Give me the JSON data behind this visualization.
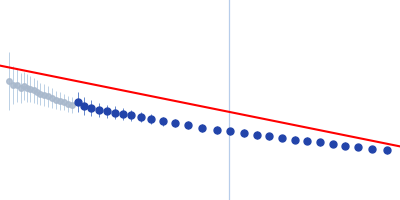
{
  "background_color": "#ffffff",
  "red_line_x": [
    -0.02,
    1.02
  ],
  "red_line_y": [
    0.68,
    0.26
  ],
  "vline_x": 0.572,
  "vline_color": "#b0c8e8",
  "series1": {
    "x": [
      0.022,
      0.032,
      0.042,
      0.052,
      0.06,
      0.068,
      0.076,
      0.084,
      0.092,
      0.1,
      0.11,
      0.12,
      0.13,
      0.14,
      0.15,
      0.16,
      0.17,
      0.18
    ],
    "y": [
      0.595,
      0.575,
      0.575,
      0.56,
      0.57,
      0.56,
      0.555,
      0.548,
      0.538,
      0.53,
      0.525,
      0.518,
      0.51,
      0.5,
      0.495,
      0.49,
      0.482,
      0.475
    ],
    "yerr": [
      0.145,
      0.095,
      0.085,
      0.075,
      0.07,
      0.068,
      0.063,
      0.062,
      0.06,
      0.056,
      0.054,
      0.051,
      0.049,
      0.045,
      0.043,
      0.041,
      0.04,
      0.038
    ],
    "color": "#a8b8cc",
    "ecolor": "#b0c8e0",
    "alpha": 0.85,
    "marker_size": 4,
    "linewidth": 0.7
  },
  "series2": {
    "x": [
      0.195,
      0.21,
      0.228,
      0.248,
      0.268,
      0.288,
      0.308,
      0.328,
      0.352,
      0.378,
      0.408,
      0.438,
      0.47,
      0.505,
      0.542,
      0.575,
      0.61,
      0.642,
      0.672,
      0.705,
      0.738,
      0.768,
      0.8,
      0.832,
      0.862,
      0.895,
      0.93,
      0.968
    ],
    "y": [
      0.49,
      0.47,
      0.458,
      0.45,
      0.443,
      0.437,
      0.43,
      0.423,
      0.415,
      0.405,
      0.394,
      0.385,
      0.374,
      0.362,
      0.35,
      0.343,
      0.335,
      0.325,
      0.318,
      0.31,
      0.302,
      0.296,
      0.288,
      0.28,
      0.272,
      0.264,
      0.256,
      0.248
    ],
    "yerr": [
      0.048,
      0.044,
      0.04,
      0.037,
      0.034,
      0.032,
      0.03,
      0.028,
      0.027,
      0.025,
      0.023,
      0.022,
      0.021,
      0.02,
      0.019,
      0.019,
      0.018,
      0.018,
      0.017,
      0.017,
      0.017,
      0.017,
      0.016,
      0.016,
      0.016,
      0.016,
      0.016,
      0.016
    ],
    "color": "#2244aa",
    "ecolor": "#6688cc",
    "alpha": 1.0,
    "marker_size": 5,
    "linewidth": 0.7
  }
}
